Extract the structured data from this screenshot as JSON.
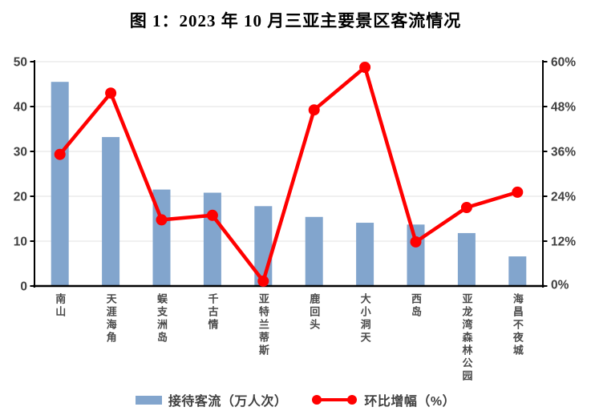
{
  "title": "图 1：2023 年 10 月三亚主要景区客流情况",
  "chart_data": {
    "type": "combo",
    "title": "图 1：2023 年 10 月三亚主要景区客流情况",
    "categories": [
      "南山",
      "天涯海角",
      "蜈支洲岛",
      "千古情",
      "亚特兰蒂斯",
      "鹿回头",
      "大小洞天",
      "西岛",
      "亚龙湾森林公园",
      "海昌不夜城"
    ],
    "series": [
      {
        "name": "接待客流（万人次）",
        "type": "bar",
        "axis": "left",
        "color": "#82a5cd",
        "values": [
          45.5,
          33.2,
          21.5,
          20.8,
          17.8,
          15.4,
          14.1,
          13.7,
          11.8,
          6.6
        ]
      },
      {
        "name": "环比增幅（%）",
        "type": "line",
        "axis": "right",
        "color": "#ff0000",
        "values": [
          35.2,
          51.6,
          17.7,
          18.9,
          1.3,
          47.1,
          58.5,
          11.8,
          21.0,
          25.1
        ]
      }
    ],
    "left_axis": {
      "min": 0,
      "max": 50,
      "step": 10,
      "ticks": [
        "0",
        "10",
        "20",
        "30",
        "40",
        "50"
      ]
    },
    "right_axis": {
      "min": 0,
      "max": 60,
      "step": 12,
      "ticks": [
        "0%",
        "12%",
        "24%",
        "36%",
        "48%",
        "60%"
      ]
    },
    "grid": true,
    "legend_position": "bottom",
    "colors": {
      "grid": "#e2e2e2",
      "axis": "#000000",
      "tick_label": "#404040",
      "category_label": "#4a4a4a"
    }
  }
}
